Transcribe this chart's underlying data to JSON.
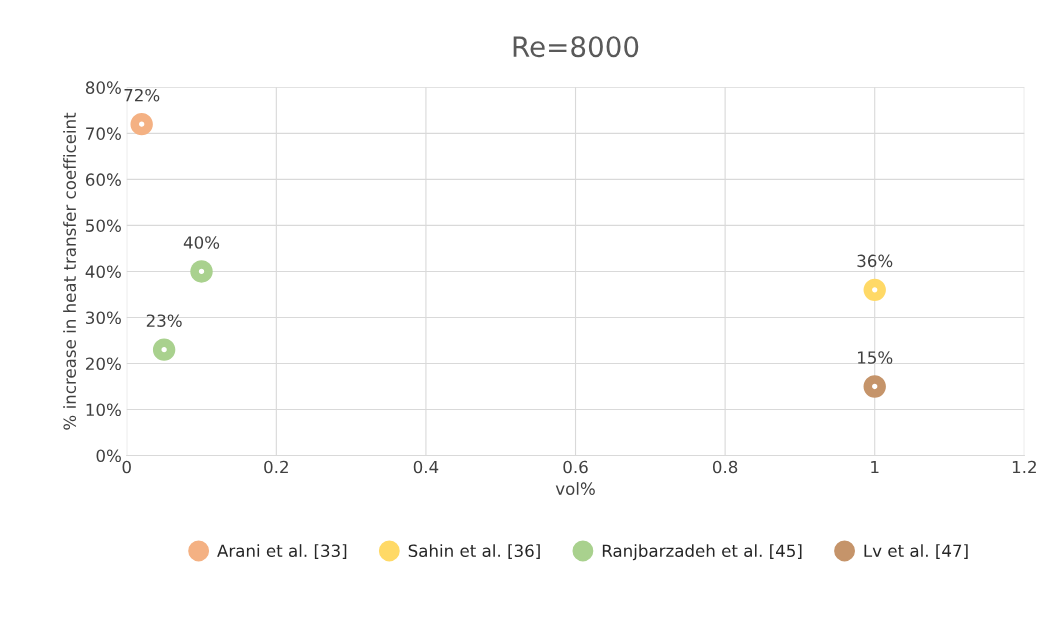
{
  "chart_data": {
    "type": "scatter",
    "title": "Re=8000",
    "xlabel": "vol%",
    "ylabel": "% increase in heat transfer coefficeint",
    "series": [
      {
        "name": "Arani et al. [33]",
        "color": "#f4b183",
        "x": [
          0.02
        ],
        "values": [
          72
        ],
        "value_labels": [
          "72%"
        ]
      },
      {
        "name": "Sahin et al. [36]",
        "color": "#ffd966",
        "x": [
          1
        ],
        "values": [
          36
        ],
        "value_labels": [
          "36%"
        ]
      },
      {
        "name": "Ranjbarzadeh et al. [45]",
        "color": "#a9d18e",
        "x": [
          0.05,
          0.1
        ],
        "values": [
          23,
          40
        ],
        "value_labels": [
          "23%",
          "40%"
        ]
      },
      {
        "name": "Lv et al. [47]",
        "color": "#c5946a",
        "x": [
          1
        ],
        "values": [
          15
        ],
        "value_labels": [
          "15%"
        ]
      }
    ],
    "xlim": [
      0,
      1.2
    ],
    "xticks": [
      0,
      0.2,
      0.4,
      0.6,
      0.8,
      1,
      1.2
    ],
    "ylim": [
      0,
      80
    ],
    "yticks": [
      {
        "value": 0,
        "label": "0%"
      },
      {
        "value": 10,
        "label": "10%"
      },
      {
        "value": 20,
        "label": "20%"
      },
      {
        "value": 30,
        "label": "30%"
      },
      {
        "value": 40,
        "label": "40%"
      },
      {
        "value": 50,
        "label": "50%"
      },
      {
        "value": 60,
        "label": "60%"
      },
      {
        "value": 70,
        "label": "70%"
      },
      {
        "value": 80,
        "label": "80%"
      }
    ],
    "grid": true,
    "legend": "bottom",
    "marker": "circle"
  }
}
